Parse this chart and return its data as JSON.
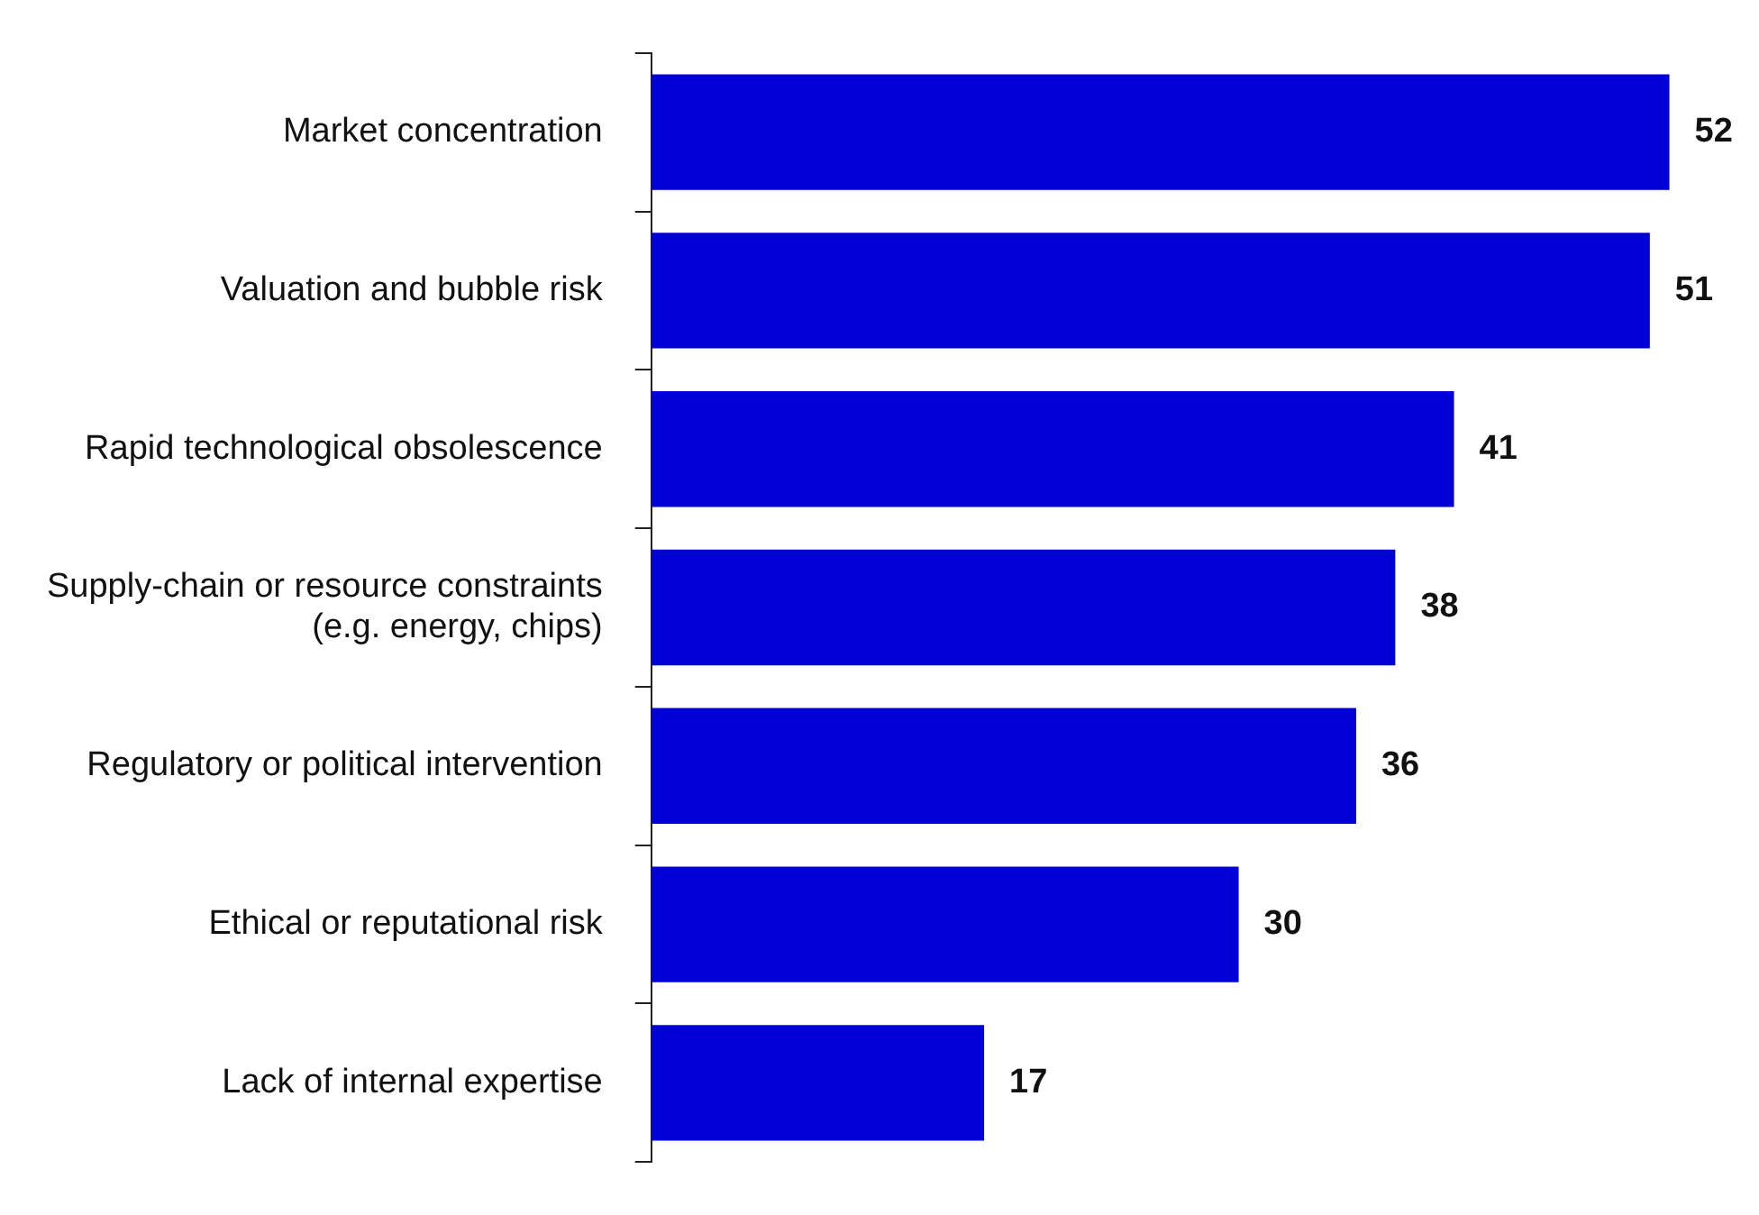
{
  "chart_data": {
    "type": "bar",
    "orientation": "horizontal",
    "categories": [
      "Market concentration",
      "Valuation and bubble risk",
      "Rapid technological obsolescence",
      "Supply-chain or resource constraints\n(e.g. energy, chips)",
      "Regulatory or political intervention",
      "Ethical or reputational risk",
      "Lack of internal expertise"
    ],
    "values": [
      52,
      51,
      41,
      38,
      36,
      30,
      17
    ],
    "color": "#0000d7",
    "data_labels": true,
    "grid": false,
    "legend": false
  }
}
